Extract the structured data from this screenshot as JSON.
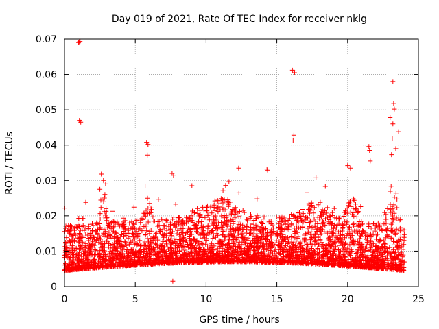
{
  "chart_data": {
    "type": "scatter",
    "title": "Day 019 of 2021, Rate Of TEC Index for receiver nklg",
    "xlabel": "GPS time / hours",
    "ylabel": "ROTI / TECUs",
    "xlim": [
      0,
      25
    ],
    "ylim": [
      0,
      0.07
    ],
    "x_ticks": [
      0,
      5,
      10,
      15,
      20,
      25
    ],
    "x_tick_labels": [
      "0",
      "5",
      "10",
      "15",
      "20",
      "25"
    ],
    "y_ticks": [
      0,
      0.01,
      0.02,
      0.03,
      0.04,
      0.05,
      0.06,
      0.07
    ],
    "y_tick_labels": [
      "0",
      "0.01",
      "0.02",
      "0.03",
      "0.04",
      "0.05",
      "0.06",
      "0.07"
    ],
    "grid": true,
    "marker": "+",
    "color": "#ff0000",
    "series": [
      {
        "name": "ROTI",
        "data_range_hours": [
          0,
          24
        ],
        "typical_band": [
          0.004,
          0.018
        ],
        "notable_points": [
          {
            "x": 1.0,
            "y": 0.069
          },
          {
            "x": 1.05,
            "y": 0.0692
          },
          {
            "x": 1.1,
            "y": 0.0693
          },
          {
            "x": 1.05,
            "y": 0.047
          },
          {
            "x": 1.15,
            "y": 0.0465
          },
          {
            "x": 1.5,
            "y": 0.0238
          },
          {
            "x": 2.6,
            "y": 0.0318
          },
          {
            "x": 2.75,
            "y": 0.03
          },
          {
            "x": 2.9,
            "y": 0.029
          },
          {
            "x": 2.5,
            "y": 0.0275
          },
          {
            "x": 5.8,
            "y": 0.0408
          },
          {
            "x": 5.9,
            "y": 0.0402
          },
          {
            "x": 5.85,
            "y": 0.0372
          },
          {
            "x": 5.7,
            "y": 0.0284
          },
          {
            "x": 7.6,
            "y": 0.032
          },
          {
            "x": 7.7,
            "y": 0.0315
          },
          {
            "x": 7.65,
            "y": 0.0015
          },
          {
            "x": 9.0,
            "y": 0.0285
          },
          {
            "x": 12.3,
            "y": 0.0335
          },
          {
            "x": 14.3,
            "y": 0.0332
          },
          {
            "x": 14.35,
            "y": 0.0328
          },
          {
            "x": 16.1,
            "y": 0.0612
          },
          {
            "x": 16.2,
            "y": 0.061
          },
          {
            "x": 16.25,
            "y": 0.0605
          },
          {
            "x": 16.2,
            "y": 0.0428
          },
          {
            "x": 16.15,
            "y": 0.0412
          },
          {
            "x": 20.0,
            "y": 0.0342
          },
          {
            "x": 20.2,
            "y": 0.0335
          },
          {
            "x": 21.5,
            "y": 0.0396
          },
          {
            "x": 21.55,
            "y": 0.0385
          },
          {
            "x": 21.6,
            "y": 0.0355
          },
          {
            "x": 23.2,
            "y": 0.058
          },
          {
            "x": 23.25,
            "y": 0.0518
          },
          {
            "x": 23.3,
            "y": 0.0502
          },
          {
            "x": 23.0,
            "y": 0.0478
          },
          {
            "x": 23.2,
            "y": 0.046
          },
          {
            "x": 23.6,
            "y": 0.0438
          },
          {
            "x": 23.4,
            "y": 0.039
          },
          {
            "x": 23.1,
            "y": 0.0373
          }
        ]
      }
    ]
  }
}
